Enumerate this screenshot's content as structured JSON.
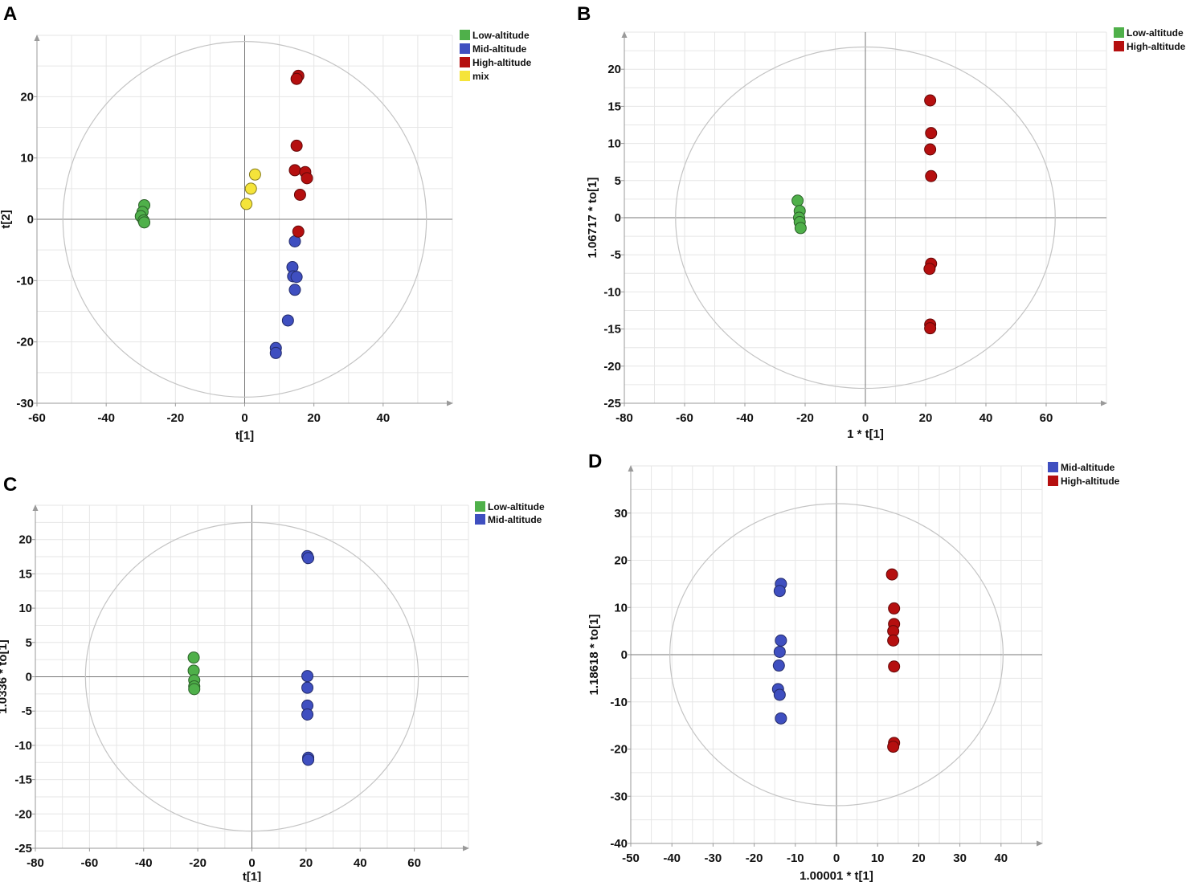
{
  "figure": {
    "panel_letters": [
      "A",
      "B",
      "C",
      "D"
    ]
  },
  "chart_data": [
    {
      "panel": "A",
      "type": "scatter",
      "xlabel": "t[1]",
      "ylabel": "t[2]",
      "xlim": [
        -60,
        60
      ],
      "ylim": [
        -30,
        30
      ],
      "xticks": [
        -60,
        -40,
        -20,
        0,
        20,
        40
      ],
      "yticks": [
        -30,
        -20,
        -10,
        0,
        10,
        20
      ],
      "grid": true,
      "ellipse": {
        "rx": 52.5,
        "ry": 29
      },
      "legend_position": "top-right",
      "series": [
        {
          "name": "Low-altitude",
          "color": "#4fb04a",
          "points": [
            [
              -29,
              2.3
            ],
            [
              -29.5,
              1.2
            ],
            [
              -30,
              0.5
            ],
            [
              -29.2,
              -0.2
            ],
            [
              -29,
              -0.5
            ]
          ]
        },
        {
          "name": "Mid-altitude",
          "color": "#3f4fc0",
          "points": [
            [
              14.5,
              -3.6
            ],
            [
              13.8,
              -7.8
            ],
            [
              14,
              -9.3
            ],
            [
              15,
              -9.4
            ],
            [
              14.5,
              -11.5
            ],
            [
              12.5,
              -16.5
            ],
            [
              9,
              -21
            ],
            [
              9,
              -21.8
            ]
          ]
        },
        {
          "name": "High-altitude",
          "color": "#b50f0f",
          "points": [
            [
              15.5,
              23.4
            ],
            [
              15,
              22.9
            ],
            [
              15,
              12
            ],
            [
              14.5,
              8
            ],
            [
              17.5,
              7.7
            ],
            [
              18,
              6.7
            ],
            [
              16,
              4
            ],
            [
              15.5,
              -2
            ]
          ]
        },
        {
          "name": "mix",
          "color": "#f5e43a",
          "points": [
            [
              3,
              7.3
            ],
            [
              1.8,
              5
            ],
            [
              0.5,
              2.5
            ]
          ]
        }
      ]
    },
    {
      "panel": "B",
      "type": "scatter",
      "xlabel": "1 * t[1]",
      "ylabel": "1.06717 * to[1]",
      "xlim": [
        -80,
        80
      ],
      "ylim": [
        -25,
        25
      ],
      "xticks": [
        -80,
        -60,
        -40,
        -20,
        0,
        20,
        40,
        60
      ],
      "yticks": [
        -25,
        -20,
        -15,
        -10,
        -5,
        0,
        5,
        10,
        15,
        20
      ],
      "grid": true,
      "ellipse": {
        "rx": 63,
        "ry": 23
      },
      "legend_position": "top-right",
      "series": [
        {
          "name": "Low-altitude",
          "color": "#4fb04a",
          "points": [
            [
              -22.5,
              2.3
            ],
            [
              -21.8,
              0.9
            ],
            [
              -22,
              0
            ],
            [
              -21.8,
              -0.6
            ],
            [
              -21.5,
              -1.4
            ]
          ]
        },
        {
          "name": "High-altitude",
          "color": "#b50f0f",
          "points": [
            [
              21.5,
              15.8
            ],
            [
              21.8,
              11.4
            ],
            [
              21.5,
              9.2
            ],
            [
              21.8,
              5.6
            ],
            [
              21.8,
              -6.2
            ],
            [
              21.3,
              -6.9
            ],
            [
              21.5,
              -14.4
            ],
            [
              21.5,
              -14.9
            ]
          ]
        }
      ]
    },
    {
      "panel": "C",
      "type": "scatter",
      "xlabel": "t[1]",
      "ylabel": "1.0336 * to[1]",
      "xlim": [
        -80,
        80
      ],
      "ylim": [
        -25,
        25
      ],
      "xticks": [
        -80,
        -60,
        -40,
        -20,
        0,
        20,
        40,
        60
      ],
      "yticks": [
        -25,
        -20,
        -15,
        -10,
        -5,
        0,
        5,
        10,
        15,
        20
      ],
      "grid": true,
      "ellipse": {
        "rx": 61.5,
        "ry": 22.5
      },
      "legend_position": "top-right",
      "series": [
        {
          "name": "Low-altitude",
          "color": "#4fb04a",
          "points": [
            [
              -21.5,
              2.8
            ],
            [
              -21.5,
              0.9
            ],
            [
              -21.3,
              -0.5
            ],
            [
              -21.3,
              -1.4
            ],
            [
              -21.3,
              -1.8
            ]
          ]
        },
        {
          "name": "Mid-altitude",
          "color": "#3f4fc0",
          "points": [
            [
              20.5,
              17.6
            ],
            [
              20.8,
              17.3
            ],
            [
              20.5,
              0.1
            ],
            [
              20.5,
              -1.6
            ],
            [
              20.5,
              -4.2
            ],
            [
              20.5,
              -5.5
            ],
            [
              20.8,
              -11.8
            ],
            [
              20.8,
              -12.1
            ]
          ]
        }
      ]
    },
    {
      "panel": "D",
      "type": "scatter",
      "xlabel": "1.00001 * t[1]",
      "ylabel": "1.18618 * to[1]",
      "xlim": [
        -50,
        50
      ],
      "ylim": [
        -40,
        40
      ],
      "xticks": [
        -50,
        -40,
        -30,
        -20,
        -10,
        0,
        10,
        20,
        30,
        40
      ],
      "yticks": [
        -40,
        -30,
        -20,
        -10,
        0,
        10,
        20,
        30
      ],
      "grid": true,
      "ellipse": {
        "rx": 40.5,
        "ry": 32
      },
      "legend_position": "top-right",
      "series": [
        {
          "name": "Mid-altitude",
          "color": "#3f4fc0",
          "points": [
            [
              -13.5,
              15
            ],
            [
              -13.8,
              13.5
            ],
            [
              -13.5,
              3
            ],
            [
              -13.8,
              0.6
            ],
            [
              -14,
              -2.3
            ],
            [
              -14.2,
              -7.3
            ],
            [
              -13.8,
              -8.5
            ],
            [
              -13.5,
              -13.5
            ]
          ]
        },
        {
          "name": "High-altitude",
          "color": "#b50f0f",
          "points": [
            [
              13.5,
              17
            ],
            [
              14,
              9.8
            ],
            [
              14,
              6.5
            ],
            [
              13.8,
              5
            ],
            [
              13.8,
              3
            ],
            [
              14,
              -2.5
            ],
            [
              14,
              -18.7
            ],
            [
              13.8,
              -19.5
            ]
          ]
        }
      ]
    }
  ]
}
